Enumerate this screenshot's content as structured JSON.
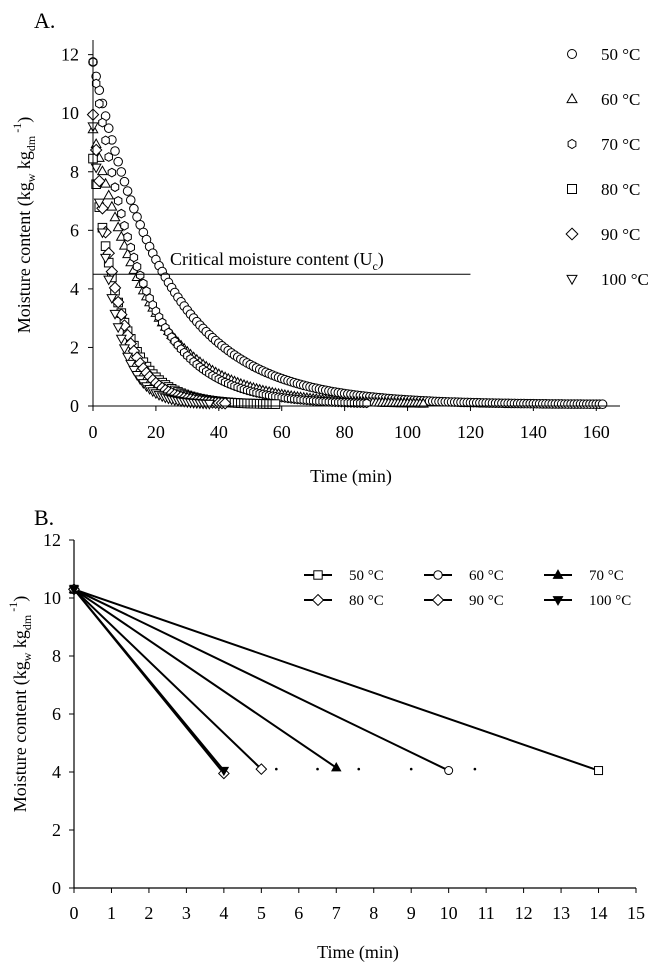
{
  "chart_data": [
    {
      "panel_label": "A.",
      "type": "scatter",
      "xlabel": "Time (min)",
      "ylabel": {
        "text": "Moisture content (kg",
        "sub1": "w",
        "mid": " kg",
        "sub2": "dm",
        "sup": "-1",
        "end": ")"
      },
      "xlim": [
        0,
        165
      ],
      "ylim": [
        0,
        12.5
      ],
      "xticks": [
        0,
        20,
        40,
        60,
        80,
        100,
        120,
        140,
        160
      ],
      "yticks": [
        0,
        2,
        4,
        6,
        8,
        10,
        12
      ],
      "annotation": {
        "text": "Critical moisture content (U",
        "sub": "c",
        "end": ")",
        "y": 4.5,
        "x_range": [
          0,
          120
        ]
      },
      "legend_position": "right",
      "series": [
        {
          "name": "50 °C",
          "marker": "circle",
          "x0": 0,
          "y0": 11.7,
          "k": 0.043,
          "xmax": 162,
          "step": 1
        },
        {
          "name": "60 °C",
          "marker": "triangle",
          "x0": 0,
          "y0": 9.4,
          "k": 0.055,
          "xmax": 105,
          "step": 1
        },
        {
          "name": "70 °C",
          "marker": "hexagon",
          "x0": 0,
          "y0": 11.7,
          "k": 0.065,
          "xmax": 87,
          "step": 1
        },
        {
          "name": "80 °C",
          "marker": "square",
          "x0": 0,
          "y0": 8.4,
          "k": 0.11,
          "xmax": 58,
          "step": 1
        },
        {
          "name": "90 °C",
          "marker": "diamond",
          "x0": 0,
          "y0": 9.9,
          "k": 0.13,
          "xmax": 42,
          "step": 1
        },
        {
          "name": "100 °C",
          "marker": "triangle-down",
          "x0": 0,
          "y0": 9.5,
          "k": 0.16,
          "xmax": 37,
          "step": 1
        }
      ]
    },
    {
      "panel_label": "B.",
      "type": "line",
      "xlabel": "Time (min)",
      "ylabel": {
        "text": "Moisture content  (kg",
        "sub1": "w",
        "mid": "  kg",
        "sub2": "dm",
        "sup": "-1",
        "end": ")"
      },
      "xlim": [
        0,
        15
      ],
      "ylim": [
        0,
        12
      ],
      "xticks": [
        0,
        1,
        2,
        3,
        4,
        5,
        6,
        7,
        8,
        9,
        10,
        11,
        12,
        13,
        14,
        15
      ],
      "yticks": [
        0,
        2,
        4,
        6,
        8,
        10,
        12
      ],
      "legend_position": "top-right",
      "series": [
        {
          "name": "50 °C",
          "marker": "square",
          "x": [
            0,
            14
          ],
          "y": [
            10.3,
            4.05
          ]
        },
        {
          "name": "60 °C",
          "marker": "circle",
          "x": [
            0,
            10
          ],
          "y": [
            10.3,
            4.05
          ]
        },
        {
          "name": "70 °C",
          "marker": "triangle-filled",
          "x": [
            0,
            7
          ],
          "y": [
            10.3,
            4.15
          ]
        },
        {
          "name": "80 °C",
          "marker": "diamond",
          "x": [
            0,
            5
          ],
          "y": [
            10.3,
            4.1
          ]
        },
        {
          "name": "90 °C",
          "marker": "diamond-half",
          "x": [
            0,
            4
          ],
          "y": [
            10.3,
            3.95
          ]
        },
        {
          "name": "100 °C",
          "marker": "triangle-down-filled",
          "x": [
            0,
            4
          ],
          "y": [
            10.3,
            4.05
          ]
        }
      ],
      "dots": {
        "y": 4.1,
        "x": [
          5.4,
          6.5,
          7.6,
          9.0,
          10.7
        ]
      }
    }
  ]
}
